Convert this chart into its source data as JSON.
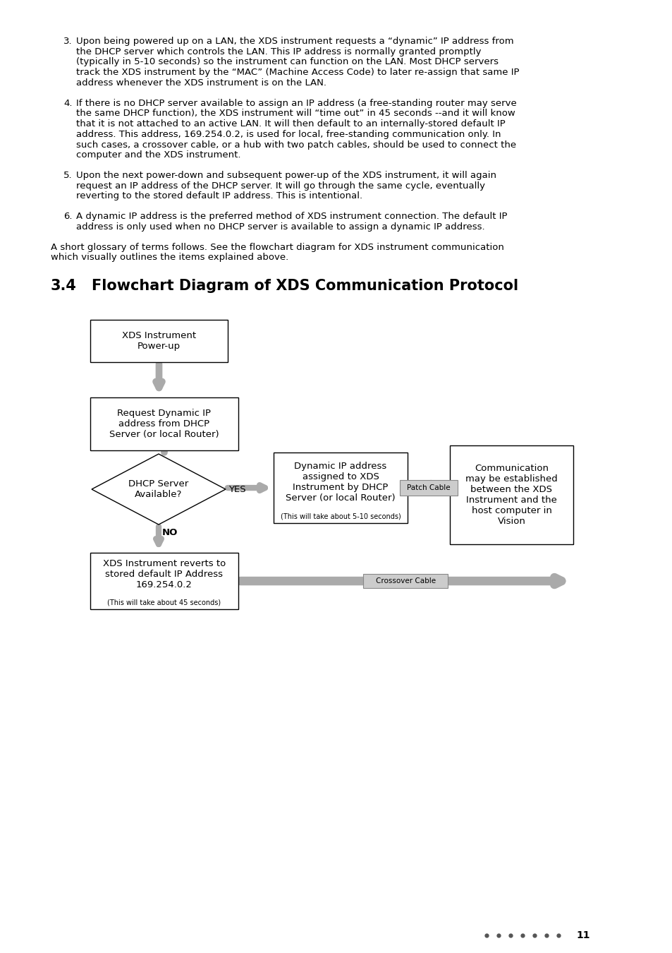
{
  "title_num": "3.4",
  "title_text": "Flowchart Diagram of XDS Communication Protocol",
  "page_number": "11",
  "background_color": "#ffffff",
  "text_color": "#000000",
  "arrow_color": "#aaaaaa",
  "box_border_color": "#000000",
  "para3_num": "3.",
  "para3": "Upon being powered up on a LAN, the XDS instrument requests a “dynamic” IP address from the DHCP server which controls the LAN. This IP address is normally granted promptly (typically in 5-10 seconds) so the instrument can function on the LAN. Most DHCP servers track the XDS instrument by the “MAC” (Machine Access Code) to later re-assign that same IP address whenever the XDS instrument is on the LAN.",
  "para4_num": "4.",
  "para4": "If there is no DHCP server available to assign an IP address (a free-standing router may serve the same DHCP function), the XDS instrument will “time out” in 45 seconds --and it will know that it is not attached to an active LAN. It will then default to an internally-stored default IP address. This address, 169.254.0.2, is used for local, free-standing communication only. In such cases, a crossover cable, or a hub with two patch cables, should be used to connect the computer and the XDS instrument.",
  "para5_num": "5.",
  "para5": "Upon the next power-down and subsequent power-up of the XDS instrument, it will again request an IP address of the DHCP server. It will go through the same cycle, eventually reverting to the stored default IP address. This is intentional.",
  "para6_num": "6.",
  "para6": "A dynamic IP address is the preferred method of XDS instrument connection. The default IP address is only used when no DHCP server is available to assign a dynamic IP address.",
  "intro": "A short glossary of terms follows. See the flowchart diagram for XDS instrument communication which visually outlines the items explained above.",
  "b1_label": "XDS Instrument\nPower-up",
  "b2_label": "Request Dynamic IP\naddress from DHCP\nServer (or local Router)",
  "diamond_label": "DHCP Server\nAvailable?",
  "b3_label": "Dynamic IP address\nassigned to XDS\nInstrument by DHCP\nServer (or local Router)",
  "b3_small": "(This will take about 5-10 seconds)",
  "b4_label": "XDS Instrument reverts to\nstored default IP Address\n169.254.0.2",
  "b4_small": "(This will take about 45 seconds)",
  "b5_label": "Communication\nmay be established\nbetween the XDS\nInstrument and the\nhost computer in\nVision",
  "yes_label": "YES",
  "no_label": "NO",
  "patch_label": "Patch Cable",
  "crossover_label": "Crossover Cable"
}
